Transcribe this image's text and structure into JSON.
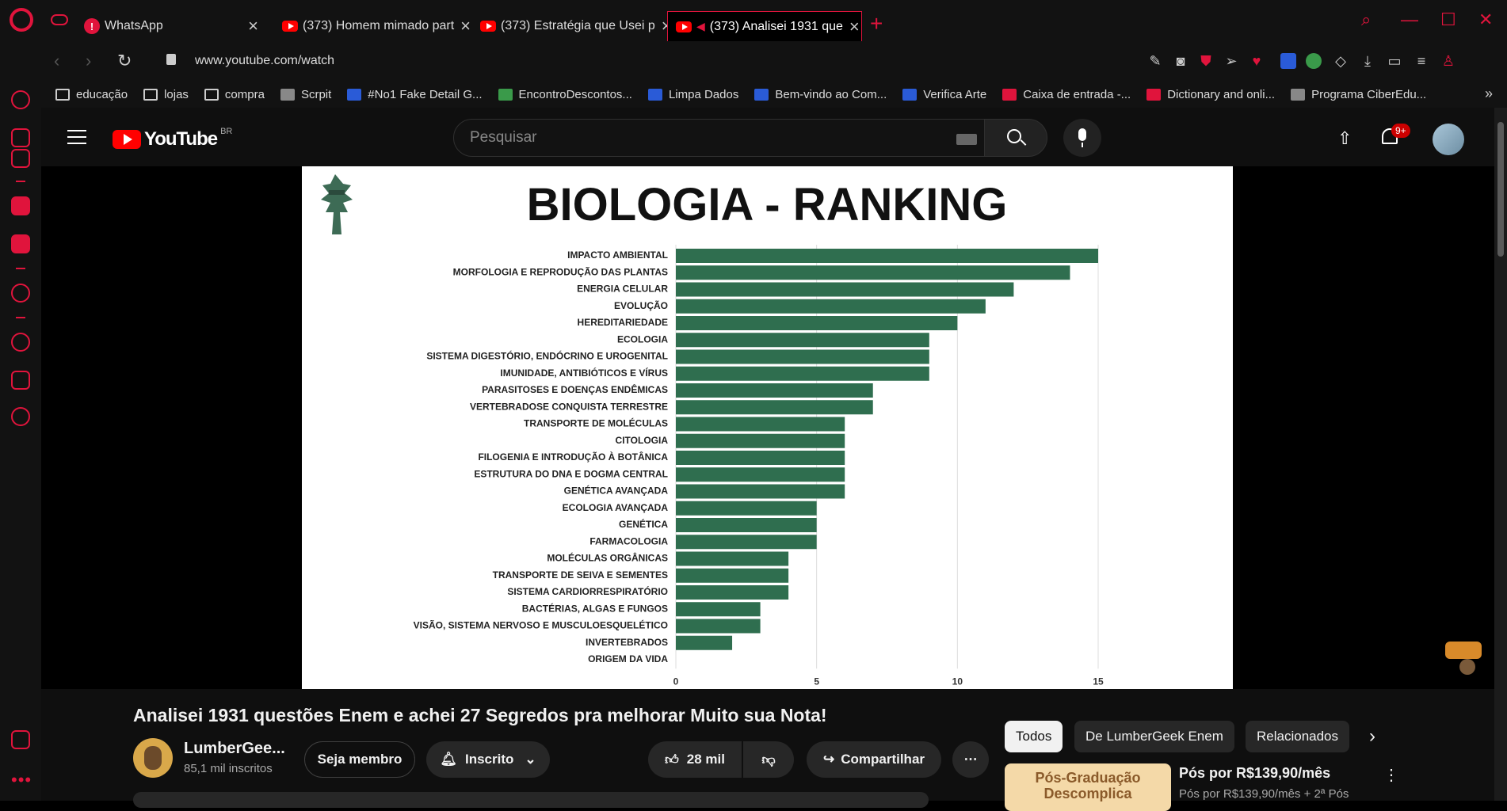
{
  "tabs": [
    {
      "title": "WhatsApp",
      "icon": "whatsapp-icon"
    },
    {
      "title": "(373) Homem mimado part",
      "icon": "youtube-icon"
    },
    {
      "title": "(373) Estratégia que Usei p",
      "icon": "youtube-icon"
    },
    {
      "title": "(373) Analisei 1931 que",
      "icon": "youtube-icon",
      "active": true,
      "audio": true
    }
  ],
  "address": {
    "url": "www.youtube.com/watch"
  },
  "bookmarks": [
    {
      "label": "educação",
      "icon": "folder-icon"
    },
    {
      "label": "lojas",
      "icon": "folder-icon"
    },
    {
      "label": "compra",
      "icon": "folder-icon"
    },
    {
      "label": "Scrpit",
      "icon": "file-icon"
    },
    {
      "label": "#No1 Fake Detail G...",
      "icon": "site-icon"
    },
    {
      "label": "EncontroDescontos...",
      "icon": "shopify-icon"
    },
    {
      "label": "Limpa Dados",
      "icon": "site-icon"
    },
    {
      "label": "Bem-vindo ao Com...",
      "icon": "site-icon"
    },
    {
      "label": "Verifica Arte",
      "icon": "site-icon"
    },
    {
      "label": "Caixa de entrada -...",
      "icon": "zoho-icon"
    },
    {
      "label": "Dictionary and onli...",
      "icon": "site-icon"
    },
    {
      "label": "Programa CiberEdu...",
      "icon": "site-icon"
    }
  ],
  "youtube": {
    "logo_text": "YouTube",
    "country": "BR",
    "search_placeholder": "Pesquisar",
    "notif_badge": "9+"
  },
  "chart_data": {
    "type": "bar",
    "orientation": "horizontal",
    "title": "BIOLOGIA - RANKING",
    "bar_color": "#2f6e4f",
    "xlim": [
      0,
      15
    ],
    "xticks": [
      0,
      5,
      10,
      15
    ],
    "grid": true,
    "categories": [
      "IMPACTO AMBIENTAL",
      "MORFOLOGIA E REPRODUÇÃO DAS PLANTAS",
      "ENERGIA CELULAR",
      "EVOLUÇÃO",
      "HEREDITARIEDADE",
      "ECOLOGIA",
      "SISTEMA DIGESTÓRIO, ENDÓCRINO E UROGENITAL",
      "IMUNIDADE, ANTIBIÓTICOS E VÍRUS",
      "PARASITOSES E DOENÇAS ENDÊMICAS",
      "VERTEBRADOSE CONQUISTA TERRESTRE",
      "TRANSPORTE DE MOLÉCULAS",
      "CITOLOGIA",
      "FILOGENIA E INTRODUÇÃO À BOTÂNICA",
      "ESTRUTURA DO DNA E DOGMA CENTRAL",
      "GENÉTICA AVANÇADA",
      "ECOLOGIA AVANÇADA",
      "GENÉTICA",
      "FARMACOLOGIA",
      "MOLÉCULAS ORGÂNICAS",
      "TRANSPORTE DE SEIVA E SEMENTES",
      "SISTEMA CARDIORRESPIRATÓRIO",
      "BACTÉRIAS, ALGAS E FUNGOS",
      "VISÃO, SISTEMA NERVOSO E MUSCULOESQUELÉTICO",
      "INVERTEBRADOS",
      "ORIGEM DA VIDA"
    ],
    "values": [
      15,
      14,
      12,
      11,
      10,
      9,
      9,
      9,
      7,
      7,
      6,
      6,
      6,
      6,
      6,
      5,
      5,
      5,
      4,
      4,
      4,
      3,
      3,
      2,
      0
    ]
  },
  "video": {
    "title": "Analisei 1931 questões Enem e achei 27 Segredos pra melhorar Muito sua Nota!",
    "channel": "LumberGee...",
    "subscribers": "85,1 mil inscritos",
    "member_label": "Seja membro",
    "subscribed_label": "Inscrito",
    "likes": "28 mil",
    "share_label": "Compartilhar"
  },
  "chips": [
    "Todos",
    "De LumberGeek Enem",
    "Relacionados"
  ],
  "ad": {
    "thumb_text": "Pós-Graduação Descomplica",
    "title": "Pós por R$139,90/mês",
    "subtitle": "Pós por R$139,90/mês + 2ª Pós"
  }
}
